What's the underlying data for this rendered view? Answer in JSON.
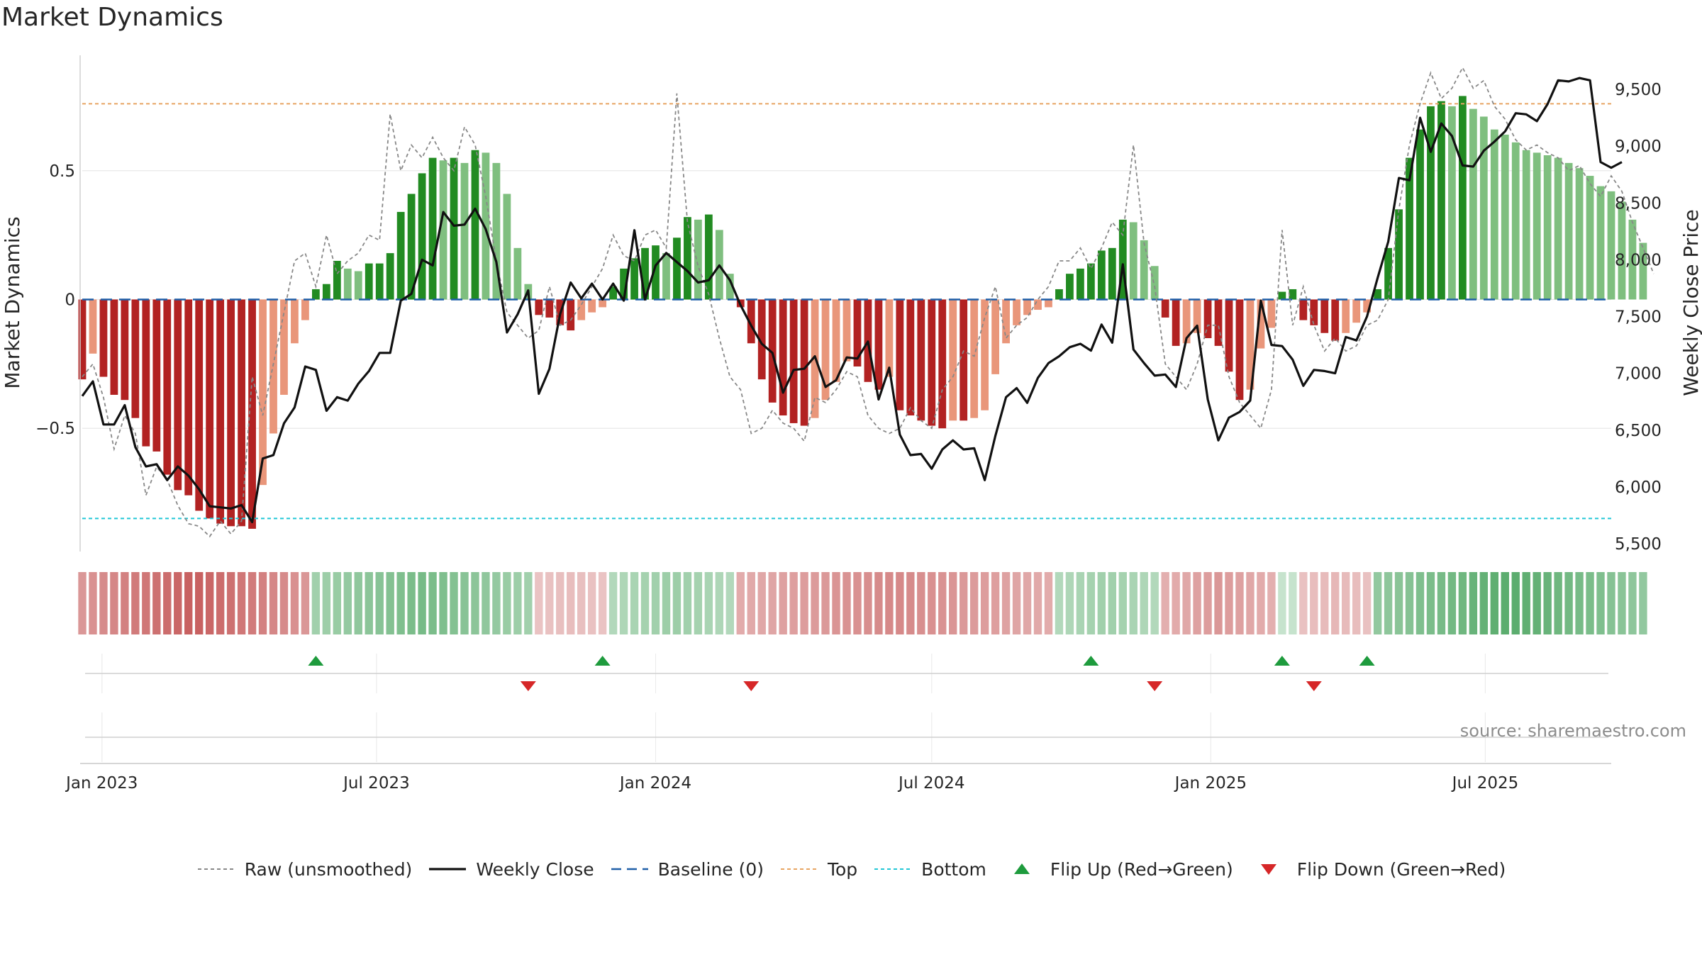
{
  "title": "Market Dynamics",
  "source_note": "source: sharemaestro.com",
  "colors": {
    "strong_green": "#228B22",
    "light_green": "#7fbf7f",
    "strong_red": "#b22222",
    "light_red": "#e9967a",
    "close": "#111111",
    "raw": "#888888",
    "baseline": "#1f5fa8",
    "top": "#e8a563",
    "bottom": "#22c7d6",
    "flip_up": "#1e9b3d",
    "flip_down": "#d62728"
  },
  "chart_data": {
    "type": "bar",
    "title": "Market Dynamics",
    "ylabel": "Market Dynamics",
    "y2label": "Weekly Close Price",
    "ylim": [
      -0.97,
      0.97
    ],
    "y2lim": [
      5450,
      9850
    ],
    "yticks": [
      -0.5,
      0,
      0.5
    ],
    "ytick_labels": [
      "−0.5",
      "0",
      "0.5"
    ],
    "y2ticks": [
      5500,
      6000,
      6500,
      7000,
      7500,
      8000,
      8500,
      9000,
      9500
    ],
    "y2tick_labels": [
      "5,500",
      "6,000",
      "6,500",
      "7,000",
      "7,500",
      "8,000",
      "8,500",
      "9,000",
      "9,500"
    ],
    "x_start": "2022-12-19",
    "x_end": "2025-09-22",
    "xtick_dates": [
      "2023-01-01",
      "2023-07-01",
      "2024-01-01",
      "2024-07-01",
      "2025-01-01",
      "2025-07-01"
    ],
    "xtick_labels": [
      "Jan 2023",
      "Jul 2023",
      "Jan 2024",
      "Jul 2024",
      "Jan 2025",
      "Jul 2025"
    ],
    "reference_lines": {
      "baseline": 0,
      "top": 0.76,
      "bottom": -0.85
    },
    "grid": true,
    "legend_position": "bottom-center",
    "legend": [
      "Raw (unsmoothed)",
      "Weekly Close",
      "Baseline (0)",
      "Top",
      "Bottom",
      "Flip Up (Red→Green)",
      "Flip Down (Green→Red)"
    ],
    "series": [
      {
        "name": "Raw (unsmoothed)",
        "values": [
          -0.3,
          -0.25,
          -0.38,
          -0.58,
          -0.45,
          -0.52,
          -0.76,
          -0.65,
          -0.7,
          -0.8,
          -0.87,
          -0.88,
          -0.92,
          -0.86,
          -0.91,
          -0.86,
          -0.3,
          -0.45,
          -0.25,
          -0.05,
          0.15,
          0.18,
          0.05,
          0.25,
          0.1,
          0.15,
          0.18,
          0.25,
          0.23,
          0.72,
          0.5,
          0.6,
          0.55,
          0.63,
          0.55,
          0.5,
          0.67,
          0.6,
          0.4,
          0.15,
          -0.05,
          -0.1,
          -0.15,
          -0.12,
          0.05,
          -0.1,
          -0.08,
          -0.02,
          0.05,
          0.12,
          0.25,
          0.17,
          0.15,
          0.25,
          0.27,
          0.2,
          0.8,
          0.3,
          0.13,
          0.02,
          -0.15,
          -0.3,
          -0.35,
          -0.52,
          -0.5,
          -0.43,
          -0.48,
          -0.5,
          -0.55,
          -0.38,
          -0.4,
          -0.35,
          -0.28,
          -0.3,
          -0.45,
          -0.5,
          -0.52,
          -0.5,
          -0.42,
          -0.47,
          -0.5,
          -0.35,
          -0.3,
          -0.2,
          -0.22,
          -0.07,
          0.05,
          -0.15,
          -0.1,
          -0.07,
          0,
          0.05,
          0.15,
          0.15,
          0.2,
          0.12,
          0.2,
          0.3,
          0.25,
          0.6,
          0.22,
          0.05,
          -0.25,
          -0.3,
          -0.35,
          -0.25,
          -0.1,
          -0.1,
          -0.3,
          -0.4,
          -0.45,
          -0.5,
          -0.35,
          0.27,
          -0.1,
          0.05,
          -0.1,
          -0.2,
          -0.15,
          -0.2,
          -0.18,
          -0.1,
          -0.08,
          0,
          0.35,
          0.6,
          0.76,
          0.88,
          0.78,
          0.82,
          0.9,
          0.82,
          0.85,
          0.75,
          0.7,
          0.62,
          0.58,
          0.6,
          0.57,
          0.55,
          0.5,
          0.52,
          0.45,
          0.4,
          0.48,
          0.42,
          0.3,
          0.2,
          0.1
        ]
      },
      {
        "name": "Weekly Close",
        "values": [
          6800,
          6930,
          6550,
          6550,
          6720,
          6350,
          6180,
          6200,
          6060,
          6180,
          6100,
          5980,
          5830,
          5820,
          5810,
          5840,
          5690,
          6250,
          6280,
          6560,
          6700,
          7060,
          7030,
          6670,
          6790,
          6760,
          6910,
          7020,
          7180,
          7180,
          7640,
          7700,
          8000,
          7950,
          8420,
          8300,
          8310,
          8450,
          8270,
          7980,
          7360,
          7520,
          7730,
          6820,
          7040,
          7520,
          7800,
          7660,
          7790,
          7650,
          7790,
          7640,
          8260,
          7650,
          7950,
          8060,
          7980,
          7900,
          7800,
          7820,
          7950,
          7820,
          7600,
          7420,
          7260,
          7180,
          6830,
          7030,
          7040,
          7150,
          6880,
          6940,
          7140,
          7130,
          7280,
          6770,
          7050,
          6460,
          6280,
          6290,
          6160,
          6330,
          6410,
          6330,
          6340,
          6060,
          6450,
          6790,
          6870,
          6740,
          6960,
          7090,
          7150,
          7230,
          7260,
          7200,
          7430,
          7270,
          7960,
          7210,
          7090,
          6980,
          6990,
          6880,
          7310,
          7420,
          6770,
          6410,
          6610,
          6660,
          6760,
          7640,
          7250,
          7240,
          7120,
          6890,
          7030,
          7020,
          7000,
          7320,
          7290,
          7500,
          7840,
          8160,
          8720,
          8700,
          9250,
          8950,
          9200,
          9090,
          8830,
          8820,
          8960,
          9040,
          9130,
          9290,
          9280,
          9220,
          9370,
          9580,
          9570,
          9600,
          9580,
          8860,
          8810,
          8860
        ]
      },
      {
        "name": "Market Dynamics",
        "values": [
          -0.31,
          -0.21,
          -0.3,
          -0.37,
          -0.39,
          -0.46,
          -0.57,
          -0.59,
          -0.68,
          -0.74,
          -0.76,
          -0.82,
          -0.85,
          -0.87,
          -0.88,
          -0.88,
          -0.89,
          -0.72,
          -0.52,
          -0.37,
          -0.17,
          -0.08,
          0.04,
          0.06,
          0.15,
          0.12,
          0.11,
          0.14,
          0.14,
          0.18,
          0.34,
          0.41,
          0.49,
          0.55,
          0.54,
          0.55,
          0.53,
          0.58,
          0.57,
          0.53,
          0.41,
          0.2,
          0.06,
          -0.06,
          -0.07,
          -0.1,
          -0.12,
          -0.08,
          -0.05,
          -0.03,
          0.05,
          0.12,
          0.16,
          0.2,
          0.21,
          0.18,
          0.24,
          0.32,
          0.31,
          0.33,
          0.27,
          0.1,
          -0.03,
          -0.17,
          -0.31,
          -0.4,
          -0.45,
          -0.48,
          -0.49,
          -0.46,
          -0.39,
          -0.32,
          -0.24,
          -0.26,
          -0.32,
          -0.35,
          -0.3,
          -0.43,
          -0.45,
          -0.47,
          -0.49,
          -0.5,
          -0.47,
          -0.47,
          -0.46,
          -0.43,
          -0.29,
          -0.17,
          -0.1,
          -0.06,
          -0.04,
          -0.03,
          0.04,
          0.1,
          0.12,
          0.14,
          0.19,
          0.2,
          0.31,
          0.3,
          0.23,
          0.13,
          -0.07,
          -0.18,
          -0.17,
          -0.13,
          -0.15,
          -0.18,
          -0.28,
          -0.39,
          -0.35,
          -0.19,
          -0.11,
          0.03,
          0.04,
          -0.08,
          -0.1,
          -0.13,
          -0.16,
          -0.13,
          -0.09,
          -0.05,
          0.04,
          0.2,
          0.35,
          0.55,
          0.66,
          0.75,
          0.77,
          0.75,
          0.79,
          0.74,
          0.71,
          0.66,
          0.64,
          0.61,
          0.58,
          0.57,
          0.56,
          0.55,
          0.53,
          0.51,
          0.48,
          0.44,
          0.42,
          0.38,
          0.31,
          0.22
        ]
      }
    ],
    "flip_up_dates": [
      "2023-05-22",
      "2023-11-27",
      "2024-10-14",
      "2025-02-17",
      "2025-04-14"
    ],
    "flip_down_dates": [
      "2023-10-09",
      "2024-03-04",
      "2024-11-25",
      "2025-03-10"
    ]
  }
}
